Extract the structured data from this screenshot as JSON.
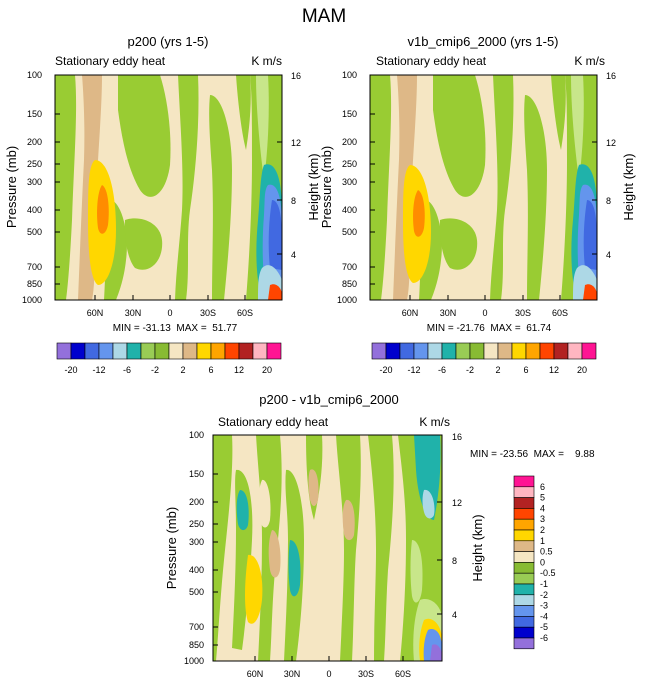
{
  "page_title": "MAM",
  "chart_data": [
    {
      "type": "heatmap",
      "title": "p200 (yrs 1-5)",
      "subtitle_left": "Stationary eddy heat",
      "subtitle_right": "K m/s",
      "xlabel": "",
      "ylabel": "Pressure (mb)",
      "ylabel_right": "Height (km)",
      "x_ticks": [
        "60N",
        "30N",
        "0",
        "30S",
        "60S"
      ],
      "y_ticks": [
        "100",
        "150",
        "200",
        "250",
        "300",
        "400",
        "500",
        "700",
        "850",
        "1000"
      ],
      "y_right_ticks": [
        "16",
        "12",
        "8",
        "4"
      ],
      "stats": "MIN = -31.13  MAX =  51.77",
      "min": -31.13,
      "max": 51.77
    },
    {
      "type": "heatmap",
      "title": "v1b_cmip6_2000 (yrs 1-5)",
      "subtitle_left": "Stationary eddy heat",
      "subtitle_right": "K m/s",
      "xlabel": "",
      "ylabel": "Pressure (mb)",
      "ylabel_right": "Height (km)",
      "x_ticks": [
        "60N",
        "30N",
        "0",
        "30S",
        "60S"
      ],
      "y_ticks": [
        "100",
        "150",
        "200",
        "250",
        "300",
        "400",
        "500",
        "700",
        "850",
        "1000"
      ],
      "y_right_ticks": [
        "16",
        "12",
        "8",
        "4"
      ],
      "stats": "MIN = -21.76  MAX =  61.74",
      "min": -21.76,
      "max": 61.74
    },
    {
      "type": "heatmap",
      "title": "p200 - v1b_cmip6_2000",
      "subtitle_left": "Stationary eddy heat",
      "subtitle_right": "K m/s",
      "xlabel": "",
      "ylabel": "Pressure (mb)",
      "ylabel_right": "Height (km)",
      "x_ticks": [
        "60N",
        "30N",
        "0",
        "30S",
        "60S"
      ],
      "y_ticks": [
        "100",
        "150",
        "200",
        "250",
        "300",
        "400",
        "500",
        "700",
        "850",
        "1000"
      ],
      "y_right_ticks": [
        "16",
        "12",
        "8",
        "4"
      ],
      "stats": "MIN = -23.56  MAX =    9.88",
      "min": -23.56,
      "max": 9.88
    }
  ],
  "colorbar_main": {
    "colors": [
      "#9370db",
      "#0000cd",
      "#4169e1",
      "#6495ed",
      "#add8e6",
      "#20b2aa",
      "#99cc55",
      "#88bb33",
      "#f5e6c3",
      "#deb887",
      "#ffd700",
      "#ffa500",
      "#ff4500",
      "#b22222",
      "#ffb6c1",
      "#ff1493"
    ],
    "labels": [
      "-20",
      "-12",
      "-6",
      "-2",
      "2",
      "6",
      "12",
      "20"
    ]
  },
  "colorbar_diff": {
    "colors": [
      "#ff1493",
      "#ffb6c1",
      "#b22222",
      "#ff4500",
      "#ffa500",
      "#ffd700",
      "#deb887",
      "#f5e6c3",
      "#88bb33",
      "#99cc55",
      "#20b2aa",
      "#add8e6",
      "#6495ed",
      "#4169e1",
      "#0000cd",
      "#9370db"
    ],
    "labels": [
      "6",
      "5",
      "4",
      "3",
      "2",
      "1",
      "0.5",
      "0",
      "-0.5",
      "-1",
      "-2",
      "-3",
      "-4",
      "-5",
      "-6"
    ]
  },
  "palette": {
    "background": "#f5e6c3",
    "green": "#99cc33",
    "tan": "#deb887",
    "teal": "#20b2aa",
    "blue": "#6495ed",
    "yellow": "#ffd700",
    "orange": "#ff8c00"
  }
}
